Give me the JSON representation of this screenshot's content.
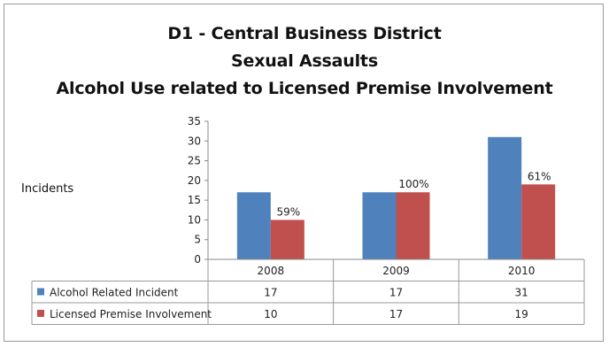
{
  "chart_data": {
    "type": "bar",
    "title": [
      "D1 - Central Business District",
      "Sexual Assaults",
      "Alcohol Use related to Licensed Premise Involvement"
    ],
    "ylabel": "Incidents",
    "xlabel": "",
    "ylim": [
      0,
      35
    ],
    "yticks": [
      0,
      5,
      10,
      15,
      20,
      25,
      30,
      35
    ],
    "grid": false,
    "legend": "data-table",
    "categories": [
      "2008",
      "2009",
      "2010"
    ],
    "series": [
      {
        "name": "Alcohol Related Incident",
        "values": [
          17,
          17,
          31
        ],
        "color": "#4f81bd"
      },
      {
        "name": "Licensed Premise Involvement",
        "values": [
          10,
          17,
          19
        ],
        "color": "#c0504d"
      }
    ],
    "annotations": [
      "59%",
      "100%",
      "61%"
    ]
  }
}
